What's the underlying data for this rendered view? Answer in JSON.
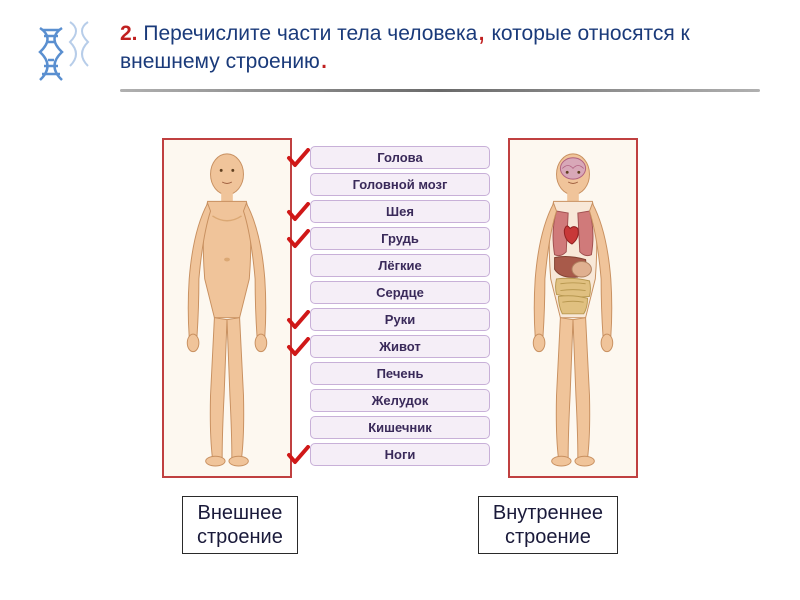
{
  "question": {
    "number": "2.",
    "text_line1": "Перечислите части тела человека",
    "comma": ",",
    "text_line2": "которые относятся   к внешнему  строению",
    "period": "."
  },
  "labels": [
    {
      "text": "Голова",
      "checked": true
    },
    {
      "text": "Головной мозг",
      "checked": false
    },
    {
      "text": "Шея",
      "checked": true
    },
    {
      "text": "Грудь",
      "checked": true
    },
    {
      "text": "Лёгкие",
      "checked": false
    },
    {
      "text": "Сердце",
      "checked": false
    },
    {
      "text": "Руки",
      "checked": true
    },
    {
      "text": "Живот",
      "checked": true
    },
    {
      "text": "Печень",
      "checked": false
    },
    {
      "text": "Желудок",
      "checked": false
    },
    {
      "text": "Кишечник",
      "checked": false
    },
    {
      "text": "Ноги",
      "checked": true
    }
  ],
  "captions": {
    "left_line1": "Внешнее",
    "left_line2": "строение",
    "right_line1": "Внутреннее",
    "right_line2": "строение"
  },
  "colors": {
    "check": "#d01818",
    "skin": "#f0c49a",
    "skin_dark": "#dba874",
    "figure_border": "#c04040",
    "figure_bg": "#fdf8f0",
    "pill_bg": "#f5eef7",
    "pill_border": "#c8b0d8",
    "pill_text": "#3a2a5a",
    "title_color": "#1a3a7a",
    "number_color": "#c02020",
    "dna_color": "#5a8fd0",
    "organ_lung": "#d07a7a",
    "organ_liver": "#a85a4a",
    "organ_intestine": "#e0c080",
    "organ_brain": "#d8a8b8"
  }
}
